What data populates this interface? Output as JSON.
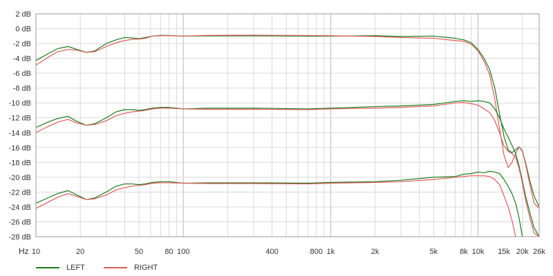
{
  "chart_data": {
    "type": "line",
    "title": "",
    "xlabel": "Hz",
    "ylabel": "",
    "x_scale": "log",
    "xlim": [
      10,
      26000
    ],
    "ylim": [
      -28,
      2
    ],
    "grid": true,
    "legend_position": "bottom-left",
    "y_ticks": [
      {
        "value": 2,
        "label": "2 dB"
      },
      {
        "value": 0,
        "label": "0 dB"
      },
      {
        "value": -2,
        "label": "-2 dB"
      },
      {
        "value": -4,
        "label": "-4 dB"
      },
      {
        "value": -6,
        "label": "-6 dB"
      },
      {
        "value": -8,
        "label": "-8 dB"
      },
      {
        "value": -10,
        "label": "-10 dB"
      },
      {
        "value": -12,
        "label": "-12 dB"
      },
      {
        "value": -14,
        "label": "-14 dB"
      },
      {
        "value": -16,
        "label": "-16 dB"
      },
      {
        "value": -18,
        "label": "-18 dB"
      },
      {
        "value": -20,
        "label": "-20 dB"
      },
      {
        "value": -22,
        "label": "-22 dB"
      },
      {
        "value": -24,
        "label": "-24 dB"
      },
      {
        "value": -26,
        "label": "-26 dB"
      },
      {
        "value": -28,
        "label": "-28 dB"
      }
    ],
    "x_ticks": [
      {
        "value": 10,
        "label": "10"
      },
      {
        "value": 20,
        "label": "20"
      },
      {
        "value": 50,
        "label": "50"
      },
      {
        "value": 80,
        "label": "80"
      },
      {
        "value": 100,
        "label": "100"
      },
      {
        "value": 400,
        "label": "400"
      },
      {
        "value": 800,
        "label": "800"
      },
      {
        "value": 1000,
        "label": "1k"
      },
      {
        "value": 2000,
        "label": "2k"
      },
      {
        "value": 5000,
        "label": "5k"
      },
      {
        "value": 8000,
        "label": "8k"
      },
      {
        "value": 10000,
        "label": "10k"
      },
      {
        "value": 15000,
        "label": "15k"
      },
      {
        "value": 20000,
        "label": "20k"
      },
      {
        "value": 26000,
        "label": "26k"
      }
    ],
    "series": [
      {
        "name": "LEFT",
        "color": "#1a7a1a",
        "group": "top",
        "points": [
          [
            10,
            -4.3
          ],
          [
            12,
            -3.4
          ],
          [
            14,
            -2.7
          ],
          [
            16.5,
            -2.4
          ],
          [
            19,
            -2.8
          ],
          [
            22,
            -3.2
          ],
          [
            25,
            -3.0
          ],
          [
            30,
            -2.0
          ],
          [
            35,
            -1.5
          ],
          [
            40,
            -1.2
          ],
          [
            45,
            -1.25
          ],
          [
            50,
            -1.35
          ],
          [
            55,
            -1.2
          ],
          [
            62,
            -1.0
          ],
          [
            70,
            -0.9
          ],
          [
            80,
            -0.92
          ],
          [
            100,
            -1.0
          ],
          [
            150,
            -0.97
          ],
          [
            300,
            -0.97
          ],
          [
            700,
            -1.0
          ],
          [
            1000,
            -1.0
          ],
          [
            2000,
            -0.95
          ],
          [
            3000,
            -1.05
          ],
          [
            5000,
            -1.0
          ],
          [
            7000,
            -1.3
          ],
          [
            8000,
            -1.5
          ],
          [
            9000,
            -1.9
          ],
          [
            10000,
            -2.8
          ],
          [
            11000,
            -4.0
          ],
          [
            12000,
            -5.5
          ],
          [
            13000,
            -8.0
          ],
          [
            14000,
            -11.5
          ],
          [
            15000,
            -14.5
          ],
          [
            16000,
            -16.3
          ],
          [
            17000,
            -16.7
          ],
          [
            18000,
            -16.3
          ],
          [
            19000,
            -15.9
          ],
          [
            20000,
            -16.5
          ],
          [
            21000,
            -18.0
          ],
          [
            22500,
            -20.5
          ],
          [
            24000,
            -22.5
          ],
          [
            26000,
            -24.0
          ]
        ]
      },
      {
        "name": "RIGHT",
        "color": "#e05a5a",
        "group": "top",
        "points": [
          [
            10,
            -4.9
          ],
          [
            12,
            -3.9
          ],
          [
            14,
            -3.1
          ],
          [
            16.5,
            -2.8
          ],
          [
            19,
            -2.9
          ],
          [
            22,
            -3.2
          ],
          [
            25,
            -3.1
          ],
          [
            30,
            -2.4
          ],
          [
            35,
            -1.9
          ],
          [
            40,
            -1.6
          ],
          [
            45,
            -1.45
          ],
          [
            50,
            -1.4
          ],
          [
            55,
            -1.3
          ],
          [
            62,
            -1.0
          ],
          [
            70,
            -0.95
          ],
          [
            80,
            -0.95
          ],
          [
            100,
            -1.0
          ],
          [
            150,
            -0.9
          ],
          [
            300,
            -0.88
          ],
          [
            700,
            -0.92
          ],
          [
            1000,
            -0.95
          ],
          [
            2000,
            -1.05
          ],
          [
            3000,
            -1.2
          ],
          [
            5000,
            -1.3
          ],
          [
            7000,
            -1.6
          ],
          [
            8000,
            -1.7
          ],
          [
            9000,
            -2.1
          ],
          [
            10000,
            -3.0
          ],
          [
            11000,
            -4.4
          ],
          [
            12000,
            -6.2
          ],
          [
            13000,
            -9.5
          ],
          [
            14000,
            -13.5
          ],
          [
            15000,
            -17.0
          ],
          [
            16000,
            -18.7
          ],
          [
            17000,
            -18.0
          ],
          [
            18000,
            -16.8
          ],
          [
            19000,
            -15.9
          ],
          [
            20000,
            -16.4
          ],
          [
            21000,
            -18.2
          ],
          [
            22500,
            -21.0
          ],
          [
            24000,
            -23.5
          ],
          [
            26000,
            -24.2
          ]
        ]
      },
      {
        "name": "LEFT",
        "color": "#1a7a1a",
        "group": "mid",
        "points": [
          [
            10,
            -13.3
          ],
          [
            12,
            -12.6
          ],
          [
            14,
            -12.1
          ],
          [
            16.5,
            -11.8
          ],
          [
            19,
            -12.5
          ],
          [
            22,
            -13.0
          ],
          [
            25,
            -12.8
          ],
          [
            30,
            -12.0
          ],
          [
            35,
            -11.2
          ],
          [
            40,
            -10.9
          ],
          [
            45,
            -10.9
          ],
          [
            50,
            -11.0
          ],
          [
            55,
            -10.9
          ],
          [
            62,
            -10.7
          ],
          [
            70,
            -10.6
          ],
          [
            80,
            -10.6
          ],
          [
            100,
            -10.8
          ],
          [
            150,
            -10.7
          ],
          [
            300,
            -10.7
          ],
          [
            700,
            -10.8
          ],
          [
            1000,
            -10.7
          ],
          [
            2000,
            -10.5
          ],
          [
            3000,
            -10.4
          ],
          [
            5000,
            -10.2
          ],
          [
            7000,
            -9.8
          ],
          [
            8000,
            -9.7
          ],
          [
            9000,
            -9.8
          ],
          [
            10000,
            -9.7
          ],
          [
            11000,
            -9.8
          ],
          [
            12000,
            -10.0
          ],
          [
            13000,
            -10.8
          ],
          [
            14000,
            -12.0
          ],
          [
            15000,
            -13.5
          ],
          [
            16000,
            -14.6
          ],
          [
            17000,
            -15.7
          ],
          [
            18000,
            -16.8
          ],
          [
            19000,
            -18.5
          ],
          [
            20000,
            -20.5
          ],
          [
            21000,
            -22.5
          ],
          [
            22500,
            -24.8
          ],
          [
            24000,
            -26.8
          ],
          [
            26000,
            -28.0
          ]
        ]
      },
      {
        "name": "RIGHT",
        "color": "#e05a5a",
        "group": "mid",
        "points": [
          [
            10,
            -14.0
          ],
          [
            12,
            -13.2
          ],
          [
            14,
            -12.6
          ],
          [
            16.5,
            -12.2
          ],
          [
            19,
            -12.7
          ],
          [
            22,
            -13.0
          ],
          [
            25,
            -12.9
          ],
          [
            30,
            -12.4
          ],
          [
            35,
            -11.7
          ],
          [
            40,
            -11.4
          ],
          [
            45,
            -11.2
          ],
          [
            50,
            -11.1
          ],
          [
            55,
            -11.0
          ],
          [
            62,
            -10.8
          ],
          [
            70,
            -10.7
          ],
          [
            80,
            -10.7
          ],
          [
            100,
            -10.8
          ],
          [
            150,
            -10.85
          ],
          [
            300,
            -10.85
          ],
          [
            700,
            -10.9
          ],
          [
            1000,
            -10.8
          ],
          [
            2000,
            -10.7
          ],
          [
            3000,
            -10.6
          ],
          [
            5000,
            -10.4
          ],
          [
            7000,
            -10.0
          ],
          [
            8000,
            -9.95
          ],
          [
            9000,
            -10.1
          ],
          [
            10000,
            -10.3
          ],
          [
            11000,
            -10.8
          ],
          [
            12000,
            -11.3
          ],
          [
            13000,
            -12.4
          ],
          [
            14000,
            -14.0
          ],
          [
            15000,
            -15.8
          ],
          [
            16000,
            -16.5
          ],
          [
            17000,
            -16.8
          ],
          [
            18000,
            -17.3
          ],
          [
            19000,
            -18.8
          ],
          [
            20000,
            -20.8
          ],
          [
            21000,
            -23.0
          ],
          [
            22500,
            -25.5
          ],
          [
            24000,
            -27.5
          ],
          [
            26000,
            -28.0
          ]
        ]
      },
      {
        "name": "LEFT",
        "color": "#1a7a1a",
        "group": "bottom",
        "points": [
          [
            10,
            -23.5
          ],
          [
            12,
            -22.8
          ],
          [
            14,
            -22.2
          ],
          [
            16.5,
            -21.8
          ],
          [
            19,
            -22.4
          ],
          [
            22,
            -23.0
          ],
          [
            25,
            -22.8
          ],
          [
            30,
            -22.0
          ],
          [
            35,
            -21.2
          ],
          [
            40,
            -20.9
          ],
          [
            45,
            -20.9
          ],
          [
            50,
            -21.0
          ],
          [
            55,
            -20.9
          ],
          [
            62,
            -20.7
          ],
          [
            70,
            -20.6
          ],
          [
            80,
            -20.6
          ],
          [
            100,
            -20.8
          ],
          [
            150,
            -20.75
          ],
          [
            300,
            -20.75
          ],
          [
            700,
            -20.8
          ],
          [
            1000,
            -20.7
          ],
          [
            2000,
            -20.6
          ],
          [
            3000,
            -20.4
          ],
          [
            5000,
            -20.0
          ],
          [
            7000,
            -19.9
          ],
          [
            8000,
            -19.6
          ],
          [
            9000,
            -19.5
          ],
          [
            10000,
            -19.3
          ],
          [
            11000,
            -19.4
          ],
          [
            12000,
            -19.2
          ],
          [
            13000,
            -19.3
          ],
          [
            14000,
            -19.5
          ],
          [
            15000,
            -20.3
          ],
          [
            16000,
            -21.2
          ],
          [
            17000,
            -22.2
          ],
          [
            18000,
            -23.5
          ],
          [
            19000,
            -25.5
          ],
          [
            20000,
            -28.0
          ]
        ]
      },
      {
        "name": "RIGHT",
        "color": "#e05a5a",
        "group": "bottom",
        "points": [
          [
            10,
            -24.2
          ],
          [
            12,
            -23.4
          ],
          [
            14,
            -22.7
          ],
          [
            16.5,
            -22.2
          ],
          [
            19,
            -22.6
          ],
          [
            22,
            -23.0
          ],
          [
            25,
            -22.9
          ],
          [
            30,
            -22.4
          ],
          [
            35,
            -21.7
          ],
          [
            40,
            -21.4
          ],
          [
            45,
            -21.2
          ],
          [
            50,
            -21.1
          ],
          [
            55,
            -21.0
          ],
          [
            62,
            -20.8
          ],
          [
            70,
            -20.75
          ],
          [
            80,
            -20.75
          ],
          [
            100,
            -20.8
          ],
          [
            150,
            -20.85
          ],
          [
            300,
            -20.85
          ],
          [
            700,
            -20.9
          ],
          [
            1000,
            -20.8
          ],
          [
            2000,
            -20.7
          ],
          [
            3000,
            -20.6
          ],
          [
            5000,
            -20.3
          ],
          [
            7000,
            -20.0
          ],
          [
            8000,
            -19.9
          ],
          [
            9000,
            -19.8
          ],
          [
            10000,
            -19.8
          ],
          [
            11000,
            -19.8
          ],
          [
            12000,
            -19.9
          ],
          [
            13000,
            -20.3
          ],
          [
            14000,
            -21.0
          ],
          [
            15000,
            -22.5
          ],
          [
            16000,
            -24.0
          ],
          [
            17000,
            -25.8
          ],
          [
            18000,
            -28.0
          ]
        ]
      }
    ]
  }
}
